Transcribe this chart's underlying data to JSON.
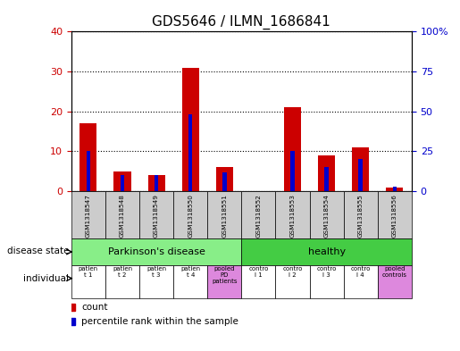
{
  "title": "GDS5646 / ILMN_1686841",
  "samples": [
    "GSM1318547",
    "GSM1318548",
    "GSM1318549",
    "GSM1318550",
    "GSM1318551",
    "GSM1318552",
    "GSM1318553",
    "GSM1318554",
    "GSM1318555",
    "GSM1318556"
  ],
  "count_values": [
    17,
    5,
    4,
    31,
    6,
    0,
    21,
    9,
    11,
    1
  ],
  "percentile_values": [
    25,
    10,
    10,
    48,
    12,
    0,
    25,
    15,
    20,
    3
  ],
  "ylim_left": [
    0,
    40
  ],
  "ylim_right": [
    0,
    100
  ],
  "yticks_left": [
    0,
    10,
    20,
    30,
    40
  ],
  "yticks_right": [
    0,
    25,
    50,
    75,
    100
  ],
  "pd_color": "#88ee88",
  "healthy_color": "#44cc44",
  "pd_label": "Parkinson's disease",
  "healthy_label": "healthy",
  "individual_labels": [
    "patien\nt 1",
    "patien\nt 2",
    "patien\nt 3",
    "patien\nt 4",
    "pooled\nPD\npatients",
    "contro\nl 1",
    "contro\nl 2",
    "contro\nl 3",
    "contro\nl 4",
    "pooled\ncontrols"
  ],
  "individual_colors": [
    "white",
    "white",
    "white",
    "white",
    "#dd88dd",
    "white",
    "white",
    "white",
    "white",
    "#dd88dd"
  ],
  "bar_color_count": "#cc0000",
  "bar_color_percentile": "#0000cc",
  "tick_color_left": "#cc0000",
  "tick_color_right": "#0000cc",
  "sample_bg_color": "#cccccc",
  "label_disease_state": "disease state",
  "label_individual": "individual",
  "count_legend": "count",
  "pct_legend": "percentile rank within the sample"
}
